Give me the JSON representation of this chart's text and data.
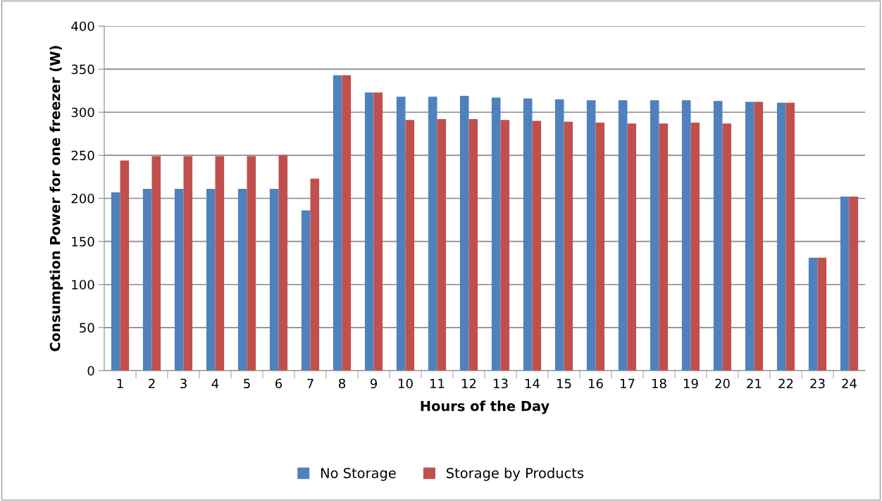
{
  "chart_data": {
    "type": "bar",
    "xlabel": "Hours of the Day",
    "ylabel": "Consumption Power for one freezer (W)",
    "categories": [
      "1",
      "2",
      "3",
      "4",
      "5",
      "6",
      "7",
      "8",
      "9",
      "10",
      "11",
      "12",
      "13",
      "14",
      "15",
      "16",
      "17",
      "18",
      "19",
      "20",
      "21",
      "22",
      "23",
      "24"
    ],
    "series": [
      {
        "name": "No Storage",
        "color": "#4f81bd",
        "values": [
          207,
          211,
          211,
          211,
          211,
          211,
          186,
          343,
          323,
          318,
          318,
          319,
          317,
          316,
          315,
          314,
          314,
          314,
          314,
          313,
          312,
          311,
          131,
          202
        ]
      },
      {
        "name": "Storage by Products",
        "color": "#c0504d",
        "values": [
          244,
          249,
          249,
          249,
          249,
          250,
          223,
          343,
          323,
          291,
          292,
          292,
          291,
          290,
          289,
          288,
          287,
          287,
          288,
          287,
          312,
          311,
          131,
          202
        ]
      }
    ],
    "ylim": [
      0,
      400
    ],
    "yticks": [
      0,
      50,
      100,
      150,
      200,
      250,
      300,
      350,
      400
    ],
    "grid": "y",
    "legend": "bottom"
  }
}
